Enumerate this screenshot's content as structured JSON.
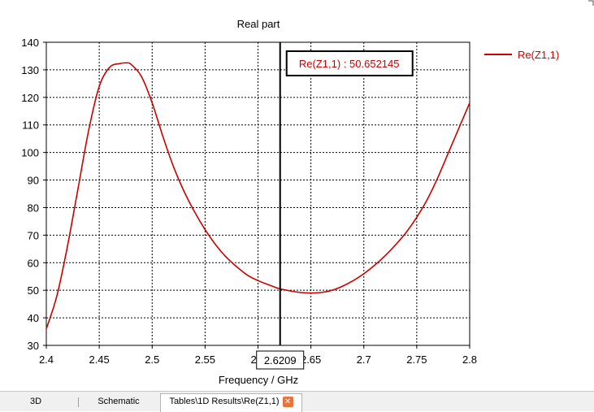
{
  "chart_data": {
    "type": "line",
    "title": "Real part",
    "xlabel": "Frequency / GHz",
    "ylabel": "",
    "xlim": [
      2.4,
      2.8
    ],
    "ylim": [
      30,
      140
    ],
    "x_ticks": [
      "2.4",
      "2.45",
      "2.5",
      "2.55",
      "2.6",
      "2.65",
      "2.7",
      "2.75",
      "2.8"
    ],
    "y_ticks": [
      "30",
      "40",
      "50",
      "60",
      "70",
      "80",
      "90",
      "100",
      "110",
      "120",
      "130",
      "140"
    ],
    "grid": true,
    "legend_position": "right",
    "series": [
      {
        "name": "Re(Z1,1)",
        "color": "#cc0000",
        "x": [
          2.4,
          2.41,
          2.42,
          2.43,
          2.44,
          2.45,
          2.46,
          2.47,
          2.475,
          2.48,
          2.49,
          2.5,
          2.51,
          2.52,
          2.53,
          2.54,
          2.55,
          2.56,
          2.57,
          2.58,
          2.59,
          2.6,
          2.61,
          2.62,
          2.63,
          2.64,
          2.65,
          2.66,
          2.67,
          2.68,
          2.69,
          2.7,
          2.71,
          2.72,
          2.73,
          2.74,
          2.75,
          2.76,
          2.77,
          2.78,
          2.79,
          2.8
        ],
        "y": [
          36,
          48,
          66,
          87,
          108,
          124,
          131,
          132.3,
          132.5,
          132,
          127.5,
          118,
          106,
          95,
          86,
          78.5,
          72,
          66.5,
          62,
          58.5,
          55.5,
          53.5,
          52,
          50.6,
          49.8,
          49.2,
          49,
          49.2,
          50,
          51.5,
          53.5,
          56,
          59,
          62.5,
          66.5,
          71,
          76.5,
          83,
          91,
          100,
          109,
          118
        ]
      }
    ],
    "marker": {
      "x": 2.6209,
      "x_label": "2.6209",
      "readout": "Re(Z1,1) : 50.652145"
    }
  },
  "tabs": [
    {
      "label": "3D"
    },
    {
      "label": "Schematic"
    },
    {
      "label": "Tables\\1D Results\\Re(Z1,1)"
    }
  ],
  "colors": {
    "curve": "#cc0000",
    "grid": "#000000",
    "marker_line": "#000000"
  }
}
